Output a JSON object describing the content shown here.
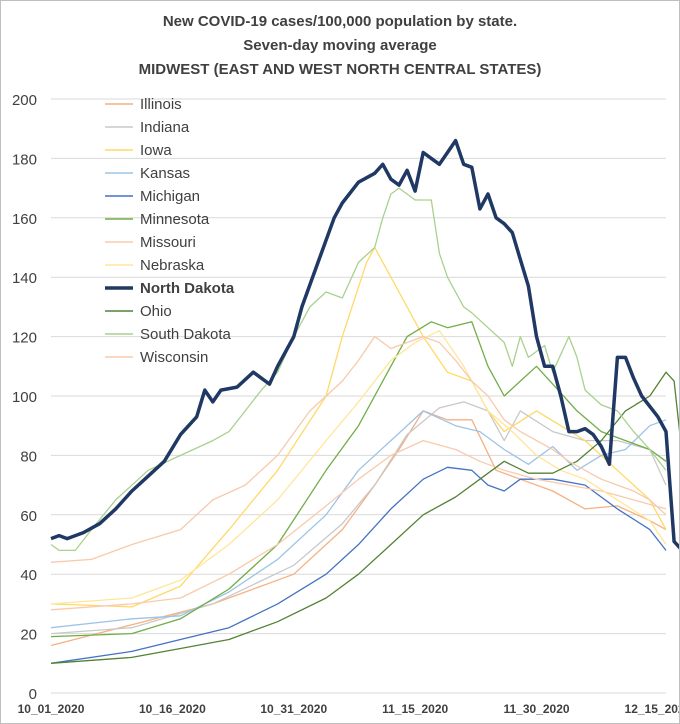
{
  "chart_data": {
    "type": "line",
    "title": "New COVID-19 cases/100,000 population by state.",
    "subtitle": "Seven-day moving average",
    "subtitle2": "MIDWEST (EAST AND WEST NORTH CENTRAL STATES)",
    "xlabel": "",
    "ylabel": "",
    "ylim": [
      0,
      200
    ],
    "yticks": [
      0,
      20,
      40,
      60,
      80,
      100,
      120,
      140,
      160,
      180,
      200
    ],
    "x_tick_labels": [
      "10_01_2020",
      "10_16_2020",
      "10_31_2020",
      "11_15_2020",
      "11_30_2020",
      "12_15_2020"
    ],
    "x_tick_day_index": [
      0,
      15,
      30,
      45,
      60,
      75
    ],
    "grid": true,
    "legend_position": "top-left",
    "days": 76,
    "series": [
      {
        "name": "Illinois",
        "color": "#f4b183",
        "bold": false,
        "points": [
          [
            0,
            16
          ],
          [
            10,
            23
          ],
          [
            20,
            30
          ],
          [
            30,
            40
          ],
          [
            36,
            55
          ],
          [
            40,
            70
          ],
          [
            43,
            82
          ],
          [
            46,
            95
          ],
          [
            49,
            92
          ],
          [
            52,
            92
          ],
          [
            55,
            75
          ],
          [
            58,
            72
          ],
          [
            62,
            68
          ],
          [
            66,
            62
          ],
          [
            70,
            63
          ],
          [
            74,
            58
          ],
          [
            76,
            55
          ]
        ]
      },
      {
        "name": "Indiana",
        "color": "#c9c9c9",
        "bold": false,
        "points": [
          [
            0,
            20
          ],
          [
            10,
            22
          ],
          [
            20,
            30
          ],
          [
            30,
            43
          ],
          [
            36,
            57
          ],
          [
            40,
            70
          ],
          [
            44,
            87
          ],
          [
            48,
            96
          ],
          [
            51,
            98
          ],
          [
            54,
            95
          ],
          [
            56,
            85
          ],
          [
            58,
            95
          ],
          [
            62,
            88
          ],
          [
            66,
            85
          ],
          [
            70,
            85
          ],
          [
            74,
            82
          ],
          [
            76,
            70
          ]
        ]
      },
      {
        "name": "Iowa",
        "color": "#ffd966",
        "bold": false,
        "points": [
          [
            0,
            30
          ],
          [
            10,
            29
          ],
          [
            16,
            36
          ],
          [
            22,
            55
          ],
          [
            28,
            75
          ],
          [
            34,
            100
          ],
          [
            36,
            120
          ],
          [
            39,
            145
          ],
          [
            40,
            150
          ],
          [
            43,
            135
          ],
          [
            46,
            120
          ],
          [
            49,
            108
          ],
          [
            52,
            105
          ],
          [
            54,
            95
          ],
          [
            56,
            88
          ],
          [
            60,
            95
          ],
          [
            63,
            90
          ],
          [
            66,
            85
          ],
          [
            70,
            75
          ],
          [
            74,
            65
          ],
          [
            76,
            55
          ]
        ]
      },
      {
        "name": "Kansas",
        "color": "#9dc3e6",
        "bold": false,
        "points": [
          [
            0,
            22
          ],
          [
            10,
            25
          ],
          [
            16,
            26
          ],
          [
            22,
            34
          ],
          [
            28,
            45
          ],
          [
            34,
            60
          ],
          [
            38,
            75
          ],
          [
            42,
            85
          ],
          [
            46,
            95
          ],
          [
            50,
            90
          ],
          [
            53,
            88
          ],
          [
            56,
            82
          ],
          [
            59,
            77
          ],
          [
            62,
            83
          ],
          [
            65,
            75
          ],
          [
            68,
            80
          ],
          [
            71,
            82
          ],
          [
            74,
            90
          ],
          [
            76,
            92
          ]
        ]
      },
      {
        "name": "Michigan",
        "color": "#4472c4",
        "bold": false,
        "points": [
          [
            0,
            10
          ],
          [
            10,
            14
          ],
          [
            16,
            18
          ],
          [
            22,
            22
          ],
          [
            28,
            30
          ],
          [
            34,
            40
          ],
          [
            38,
            50
          ],
          [
            42,
            62
          ],
          [
            46,
            72
          ],
          [
            49,
            76
          ],
          [
            52,
            75
          ],
          [
            54,
            70
          ],
          [
            56,
            68
          ],
          [
            58,
            72
          ],
          [
            62,
            72
          ],
          [
            66,
            70
          ],
          [
            70,
            62
          ],
          [
            74,
            55
          ],
          [
            76,
            48
          ]
        ]
      },
      {
        "name": "Minnesota",
        "color": "#70ad47",
        "bold": false,
        "points": [
          [
            0,
            19
          ],
          [
            10,
            20
          ],
          [
            16,
            25
          ],
          [
            22,
            35
          ],
          [
            28,
            50
          ],
          [
            34,
            75
          ],
          [
            38,
            90
          ],
          [
            41,
            105
          ],
          [
            44,
            120
          ],
          [
            47,
            125
          ],
          [
            49,
            123
          ],
          [
            52,
            125
          ],
          [
            54,
            110
          ],
          [
            56,
            100
          ],
          [
            58,
            105
          ],
          [
            60,
            110
          ],
          [
            62,
            104
          ],
          [
            65,
            95
          ],
          [
            68,
            88
          ],
          [
            71,
            85
          ],
          [
            74,
            82
          ],
          [
            76,
            78
          ]
        ]
      },
      {
        "name": "Missouri",
        "color": "#f8cbad",
        "bold": false,
        "points": [
          [
            0,
            28
          ],
          [
            10,
            30
          ],
          [
            16,
            32
          ],
          [
            22,
            40
          ],
          [
            28,
            50
          ],
          [
            34,
            63
          ],
          [
            38,
            72
          ],
          [
            42,
            80
          ],
          [
            46,
            85
          ],
          [
            50,
            82
          ],
          [
            53,
            78
          ],
          [
            56,
            75
          ],
          [
            60,
            72
          ],
          [
            64,
            70
          ],
          [
            68,
            68
          ],
          [
            72,
            65
          ],
          [
            76,
            62
          ]
        ]
      },
      {
        "name": "Nebraska",
        "color": "#ffe699",
        "bold": false,
        "points": [
          [
            0,
            30
          ],
          [
            10,
            32
          ],
          [
            16,
            38
          ],
          [
            22,
            50
          ],
          [
            28,
            65
          ],
          [
            34,
            85
          ],
          [
            38,
            98
          ],
          [
            42,
            112
          ],
          [
            45,
            118
          ],
          [
            48,
            122
          ],
          [
            51,
            110
          ],
          [
            54,
            95
          ],
          [
            57,
            88
          ],
          [
            60,
            80
          ],
          [
            63,
            75
          ],
          [
            66,
            72
          ],
          [
            70,
            65
          ],
          [
            74,
            58
          ],
          [
            76,
            50
          ]
        ]
      },
      {
        "name": "North Dakota",
        "color": "#203864",
        "bold": true,
        "points": [
          [
            0,
            52
          ],
          [
            1,
            53
          ],
          [
            2,
            52
          ],
          [
            4,
            54
          ],
          [
            6,
            57
          ],
          [
            8,
            62
          ],
          [
            10,
            68
          ],
          [
            12,
            73
          ],
          [
            14,
            78
          ],
          [
            16,
            87
          ],
          [
            18,
            93
          ],
          [
            19,
            102
          ],
          [
            20,
            98
          ],
          [
            21,
            102
          ],
          [
            23,
            103
          ],
          [
            25,
            108
          ],
          [
            26,
            106
          ],
          [
            27,
            104
          ],
          [
            28,
            110
          ],
          [
            30,
            120
          ],
          [
            31,
            130
          ],
          [
            33,
            145
          ],
          [
            35,
            160
          ],
          [
            36,
            165
          ],
          [
            38,
            172
          ],
          [
            40,
            175
          ],
          [
            41,
            178
          ],
          [
            42,
            173
          ],
          [
            43,
            171
          ],
          [
            44,
            176
          ],
          [
            45,
            169
          ],
          [
            46,
            182
          ],
          [
            47,
            180
          ],
          [
            48,
            178
          ],
          [
            49,
            182
          ],
          [
            50,
            186
          ],
          [
            51,
            178
          ],
          [
            52,
            177
          ],
          [
            53,
            163
          ],
          [
            54,
            168
          ],
          [
            55,
            160
          ],
          [
            56,
            158
          ],
          [
            57,
            155
          ],
          [
            58,
            146
          ],
          [
            59,
            137
          ],
          [
            60,
            120
          ],
          [
            61,
            110
          ],
          [
            62,
            110
          ],
          [
            63,
            100
          ],
          [
            64,
            88
          ],
          [
            65,
            88
          ],
          [
            66,
            89
          ],
          [
            67,
            87
          ],
          [
            68,
            83
          ],
          [
            69,
            77
          ],
          [
            70,
            113
          ],
          [
            71,
            113
          ],
          [
            72,
            106
          ],
          [
            73,
            100
          ],
          [
            75,
            93
          ],
          [
            76,
            88
          ],
          [
            77,
            51
          ],
          [
            78,
            48
          ],
          [
            79,
            44
          ]
        ]
      },
      {
        "name": "Ohio",
        "color": "#548235",
        "bold": false,
        "points": [
          [
            0,
            10
          ],
          [
            10,
            12
          ],
          [
            16,
            15
          ],
          [
            22,
            18
          ],
          [
            28,
            24
          ],
          [
            34,
            32
          ],
          [
            38,
            40
          ],
          [
            42,
            50
          ],
          [
            46,
            60
          ],
          [
            50,
            66
          ],
          [
            53,
            72
          ],
          [
            56,
            78
          ],
          [
            59,
            74
          ],
          [
            62,
            74
          ],
          [
            65,
            78
          ],
          [
            68,
            85
          ],
          [
            71,
            95
          ],
          [
            74,
            100
          ],
          [
            76,
            108
          ],
          [
            77,
            105
          ],
          [
            78,
            80
          ],
          [
            79,
            79
          ]
        ]
      },
      {
        "name": "South Dakota",
        "color": "#a9d18e",
        "bold": false,
        "points": [
          [
            0,
            50
          ],
          [
            1,
            48
          ],
          [
            3,
            48
          ],
          [
            5,
            55
          ],
          [
            8,
            65
          ],
          [
            12,
            75
          ],
          [
            16,
            80
          ],
          [
            20,
            85
          ],
          [
            22,
            88
          ],
          [
            24,
            95
          ],
          [
            26,
            102
          ],
          [
            28,
            108
          ],
          [
            30,
            120
          ],
          [
            32,
            130
          ],
          [
            34,
            135
          ],
          [
            36,
            133
          ],
          [
            38,
            145
          ],
          [
            40,
            150
          ],
          [
            41,
            160
          ],
          [
            42,
            168
          ],
          [
            43,
            170
          ],
          [
            45,
            166
          ],
          [
            47,
            166
          ],
          [
            48,
            148
          ],
          [
            49,
            140
          ],
          [
            51,
            130
          ],
          [
            52,
            128
          ],
          [
            54,
            123
          ],
          [
            56,
            118
          ],
          [
            57,
            110
          ],
          [
            58,
            120
          ],
          [
            59,
            113
          ],
          [
            61,
            117
          ],
          [
            62,
            108
          ],
          [
            64,
            120
          ],
          [
            65,
            113
          ],
          [
            66,
            102
          ],
          [
            68,
            97
          ],
          [
            70,
            95
          ],
          [
            72,
            88
          ],
          [
            74,
            82
          ],
          [
            76,
            75
          ]
        ]
      },
      {
        "name": "Wisconsin",
        "color": "#f7caac",
        "bold": false,
        "points": [
          [
            0,
            44
          ],
          [
            5,
            45
          ],
          [
            10,
            50
          ],
          [
            16,
            55
          ],
          [
            20,
            65
          ],
          [
            24,
            70
          ],
          [
            28,
            80
          ],
          [
            32,
            95
          ],
          [
            36,
            105
          ],
          [
            38,
            112
          ],
          [
            40,
            120
          ],
          [
            42,
            116
          ],
          [
            44,
            118
          ],
          [
            46,
            120
          ],
          [
            48,
            118
          ],
          [
            50,
            112
          ],
          [
            52,
            105
          ],
          [
            54,
            100
          ],
          [
            56,
            92
          ],
          [
            58,
            88
          ],
          [
            60,
            85
          ],
          [
            62,
            82
          ],
          [
            64,
            78
          ],
          [
            66,
            75
          ],
          [
            68,
            72
          ],
          [
            70,
            70
          ],
          [
            72,
            68
          ],
          [
            74,
            65
          ],
          [
            76,
            60
          ]
        ]
      }
    ]
  }
}
